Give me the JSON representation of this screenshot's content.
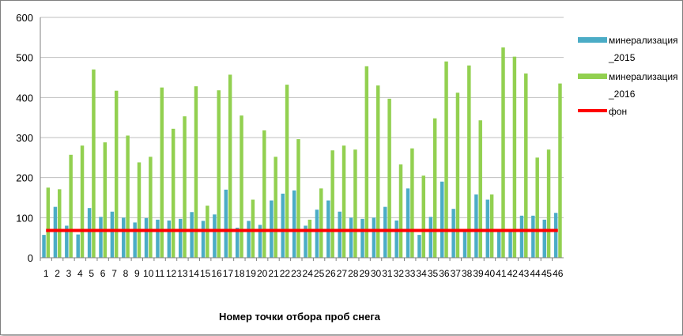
{
  "chart_data": {
    "type": "bar",
    "title": "",
    "xlabel": "Номер точки отбора проб снега",
    "ylabel": "",
    "ylim": [
      0,
      600
    ],
    "yticks": [
      0,
      100,
      200,
      300,
      400,
      500,
      600
    ],
    "grid": true,
    "legend_position": "right",
    "categories": [
      "1",
      "2",
      "3",
      "4",
      "5",
      "6",
      "7",
      "8",
      "9",
      "10",
      "11",
      "12",
      "13",
      "14",
      "15",
      "16",
      "17",
      "18",
      "19",
      "20",
      "21",
      "22",
      "23",
      "24",
      "25",
      "26",
      "27",
      "28",
      "29",
      "30",
      "31",
      "32",
      "33",
      "34",
      "35",
      "36",
      "37",
      "38",
      "39",
      "40",
      "41",
      "42",
      "43",
      "44",
      "45",
      "46"
    ],
    "series": [
      {
        "name_line1": "минерализация",
        "name_line2": "_2015",
        "color": "#4bacc6",
        "kind": "bar",
        "values": [
          57,
          127,
          80,
          58,
          124,
          102,
          115,
          100,
          88,
          99,
          95,
          93,
          97,
          114,
          92,
          108,
          170,
          75,
          92,
          82,
          143,
          160,
          168,
          80,
          120,
          143,
          115,
          100,
          97,
          100,
          127,
          93,
          173,
          57,
          102,
          190,
          122,
          70,
          158,
          145,
          72,
          70,
          105,
          105,
          95,
          112
        ]
      },
      {
        "name_line1": "минерализация",
        "name_line2": "_2016",
        "color": "#92d050",
        "kind": "bar",
        "values": [
          175,
          171,
          257,
          280,
          470,
          288,
          417,
          305,
          238,
          252,
          425,
          322,
          353,
          428,
          130,
          418,
          457,
          355,
          145,
          318,
          252,
          432,
          296,
          95,
          173,
          268,
          280,
          270,
          478,
          430,
          397,
          233,
          273,
          205,
          348,
          490,
          412,
          480,
          343,
          158,
          525,
          502,
          460,
          250,
          270,
          435
        ]
      },
      {
        "name": "фон",
        "color": "#ff0000",
        "kind": "line",
        "value": 68
      }
    ]
  }
}
